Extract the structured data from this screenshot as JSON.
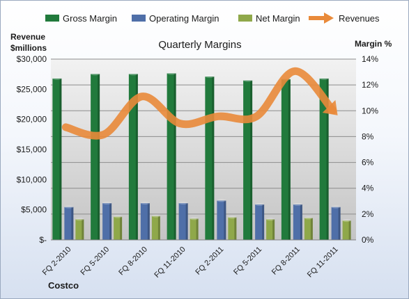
{
  "chart_data": {
    "type": "bar",
    "title": "Quarterly Margins",
    "company": "Costco",
    "ylabel_left": [
      "Revenue",
      "$millions"
    ],
    "ylabel_right": "Margin %",
    "categories": [
      "FQ 2-2010",
      "FQ 5-2010",
      "FQ 8-2010",
      "FQ 11-2010",
      "FQ 2-2011",
      "FQ 5-2011",
      "FQ 8-2011",
      "FQ 11-2011"
    ],
    "left_axis": {
      "range": [
        0,
        30000
      ],
      "ticks": [
        "$-",
        "$5,000",
        "$10,000",
        "$15,000",
        "$20,000",
        "$25,000",
        "$30,000"
      ]
    },
    "right_axis": {
      "range": [
        0,
        14
      ],
      "ticks": [
        "0%",
        "2%",
        "4%",
        "6%",
        "8%",
        "10%",
        "12%",
        "14%"
      ]
    },
    "series": [
      {
        "name": "Gross Margin",
        "axis": "right",
        "type": "bar",
        "color": "#217a3c",
        "values": [
          12.5,
          12.85,
          12.85,
          12.9,
          12.65,
          12.35,
          12.45,
          12.5
        ]
      },
      {
        "name": "Operating Margin",
        "axis": "right",
        "type": "bar",
        "color": "#4f6fa8",
        "values": [
          2.55,
          2.85,
          2.85,
          2.85,
          3.05,
          2.75,
          2.75,
          2.55
        ]
      },
      {
        "name": "Net Margin",
        "axis": "right",
        "type": "bar",
        "color": "#8fa84a",
        "values": [
          1.6,
          1.8,
          1.85,
          1.65,
          1.75,
          1.6,
          1.7,
          1.5
        ]
      },
      {
        "name": "Revenues",
        "axis": "left",
        "type": "line",
        "color": "#e98a3a",
        "values": [
          18700,
          17500,
          23800,
          19300,
          20500,
          20500,
          28000,
          21500
        ]
      }
    ],
    "grid": true,
    "legend": "top"
  }
}
